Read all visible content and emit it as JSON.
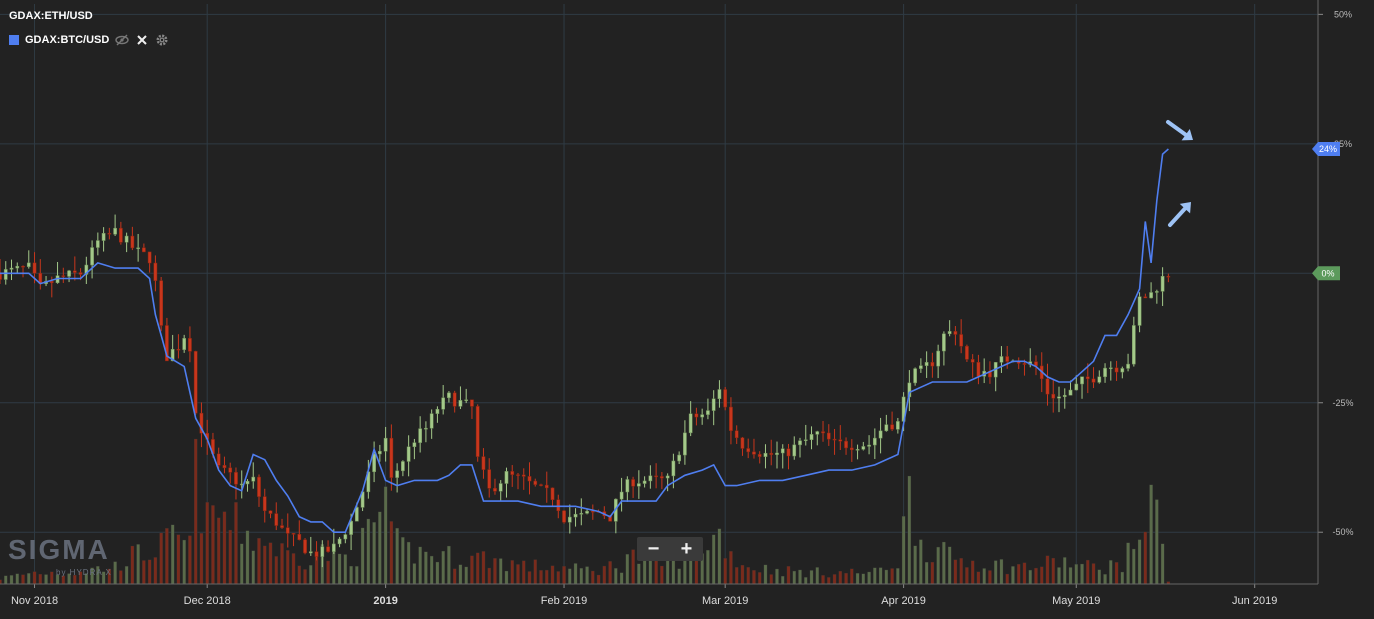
{
  "header": {
    "main_symbol": "GDAX:ETH/USD",
    "compare_symbol": "GDAX:BTC/USD"
  },
  "zoom": {
    "minus_label": "−",
    "plus_label": "+"
  },
  "logo": {
    "text": "SIGMA",
    "sub": "by HYDRA X"
  },
  "colors": {
    "background": "#222222",
    "grid": "#2f3b44",
    "up_candle": "#a4c98a",
    "down_candle": "#c8361c",
    "up_volume": "#5a6b4a",
    "down_volume": "#7a2b1c",
    "compare_line": "#4f7ef0",
    "arrow": "#9ec3f5"
  },
  "icons": {
    "hide": "eye-slash-icon",
    "remove": "close-icon",
    "settings": "gear-icon",
    "arrow_down": "arrow-down-right-icon",
    "arrow_up": "arrow-up-right-icon"
  },
  "chart_data": {
    "type": "candlestick",
    "title": "",
    "ylabel": "",
    "y_axis": {
      "unit": "percent change",
      "ticks": [
        50,
        25,
        -25,
        -50
      ],
      "tick_labels": [
        "50%",
        "25%",
        "-25%",
        "-50%"
      ],
      "ylim": [
        -60,
        52
      ]
    },
    "x_axis": {
      "labels": [
        {
          "text": "Nov 2018",
          "day": 0,
          "bold": false
        },
        {
          "text": "Dec 2018",
          "day": 30,
          "bold": false
        },
        {
          "text": "2019",
          "day": 61,
          "bold": true
        },
        {
          "text": "Feb 2019",
          "day": 92,
          "bold": false
        },
        {
          "text": "Mar 2019",
          "day": 120,
          "bold": false
        },
        {
          "text": "Apr 2019",
          "day": 151,
          "bold": false
        },
        {
          "text": "May 2019",
          "day": 181,
          "bold": false
        },
        {
          "text": "Jun 2019",
          "day": 212,
          "bold": false
        }
      ],
      "xlim_days": [
        -6,
        223
      ]
    },
    "last_value_badges": [
      {
        "value": 24,
        "text": "24%",
        "color": "#4f7ef0"
      },
      {
        "value": 0,
        "text": "0%",
        "color": "#5c9a5c"
      }
    ],
    "series": [
      {
        "name": "GDAX:ETH/USD",
        "kind": "candles",
        "close_keypoints": [
          [
            -6,
            0
          ],
          [
            -1,
            1
          ],
          [
            1,
            -3
          ],
          [
            4,
            -1
          ],
          [
            8,
            0
          ],
          [
            11,
            6
          ],
          [
            14,
            8
          ],
          [
            18,
            4
          ],
          [
            20,
            3
          ],
          [
            21,
            -2
          ],
          [
            22,
            -11
          ],
          [
            23,
            -16
          ],
          [
            25,
            -14
          ],
          [
            26,
            -12
          ],
          [
            27,
            -14
          ],
          [
            28,
            -27
          ],
          [
            30,
            -33
          ],
          [
            32,
            -38
          ],
          [
            34,
            -39
          ],
          [
            36,
            -41
          ],
          [
            38,
            -40
          ],
          [
            40,
            -46
          ],
          [
            42,
            -48
          ],
          [
            44,
            -51
          ],
          [
            46,
            -52
          ],
          [
            48,
            -54
          ],
          [
            50,
            -54
          ],
          [
            52,
            -53
          ],
          [
            55,
            -48
          ],
          [
            57,
            -42
          ],
          [
            59,
            -36
          ],
          [
            61,
            -32
          ],
          [
            62,
            -40
          ],
          [
            64,
            -36
          ],
          [
            66,
            -32
          ],
          [
            68,
            -30
          ],
          [
            70,
            -26
          ],
          [
            72,
            -24
          ],
          [
            74,
            -25
          ],
          [
            76,
            -26
          ],
          [
            77,
            -36
          ],
          [
            79,
            -42
          ],
          [
            82,
            -39
          ],
          [
            85,
            -40
          ],
          [
            88,
            -42
          ],
          [
            90,
            -43
          ],
          [
            92,
            -47
          ],
          [
            95,
            -47
          ],
          [
            98,
            -46
          ],
          [
            100,
            -47
          ],
          [
            102,
            -42
          ],
          [
            104,
            -40
          ],
          [
            107,
            -40
          ],
          [
            110,
            -40
          ],
          [
            112,
            -34
          ],
          [
            114,
            -28
          ],
          [
            117,
            -27
          ],
          [
            119,
            -22
          ],
          [
            121,
            -30
          ],
          [
            123,
            -33
          ],
          [
            125,
            -34
          ],
          [
            127,
            -35
          ],
          [
            130,
            -35
          ],
          [
            133,
            -33
          ],
          [
            136,
            -31
          ],
          [
            139,
            -33
          ],
          [
            142,
            -33
          ],
          [
            145,
            -33
          ],
          [
            148,
            -29
          ],
          [
            150,
            -29
          ],
          [
            152,
            -20
          ],
          [
            154,
            -19
          ],
          [
            156,
            -17
          ],
          [
            158,
            -12
          ],
          [
            160,
            -11
          ],
          [
            162,
            -17
          ],
          [
            164,
            -19
          ],
          [
            166,
            -19
          ],
          [
            168,
            -17
          ],
          [
            170,
            -16
          ],
          [
            172,
            -17
          ],
          [
            174,
            -18
          ],
          [
            176,
            -23
          ],
          [
            178,
            -24
          ],
          [
            180,
            -23
          ],
          [
            182,
            -21
          ],
          [
            184,
            -20
          ],
          [
            186,
            -18
          ],
          [
            188,
            -18
          ],
          [
            190,
            -17
          ],
          [
            192,
            -5
          ],
          [
            194,
            -4
          ],
          [
            196,
            -1
          ],
          [
            197,
            0
          ]
        ]
      },
      {
        "name": "GDAX:BTC/USD",
        "kind": "line",
        "points": [
          [
            -6,
            0
          ],
          [
            -1,
            0
          ],
          [
            1,
            -2
          ],
          [
            4,
            -1
          ],
          [
            8,
            -1
          ],
          [
            11,
            2
          ],
          [
            14,
            1
          ],
          [
            18,
            1
          ],
          [
            20,
            -1
          ],
          [
            21,
            -8
          ],
          [
            22,
            -12
          ],
          [
            23,
            -16
          ],
          [
            26,
            -18
          ],
          [
            28,
            -28
          ],
          [
            30,
            -32
          ],
          [
            32,
            -38
          ],
          [
            34,
            -41
          ],
          [
            36,
            -42
          ],
          [
            38,
            -35
          ],
          [
            40,
            -36
          ],
          [
            42,
            -40
          ],
          [
            44,
            -43
          ],
          [
            46,
            -47
          ],
          [
            48,
            -48
          ],
          [
            50,
            -48
          ],
          [
            52,
            -50
          ],
          [
            54,
            -50
          ],
          [
            57,
            -42
          ],
          [
            59,
            -34
          ],
          [
            61,
            -40
          ],
          [
            63,
            -41
          ],
          [
            66,
            -40
          ],
          [
            70,
            -40
          ],
          [
            72,
            -39
          ],
          [
            74,
            -37
          ],
          [
            76,
            -37
          ],
          [
            78,
            -44
          ],
          [
            80,
            -44
          ],
          [
            84,
            -44
          ],
          [
            88,
            -45
          ],
          [
            90,
            -45
          ],
          [
            94,
            -45
          ],
          [
            98,
            -46
          ],
          [
            100,
            -47
          ],
          [
            102,
            -44
          ],
          [
            105,
            -44
          ],
          [
            108,
            -44
          ],
          [
            110,
            -41
          ],
          [
            113,
            -39
          ],
          [
            116,
            -38
          ],
          [
            118,
            -37
          ],
          [
            120,
            -41
          ],
          [
            122,
            -41
          ],
          [
            126,
            -40
          ],
          [
            130,
            -40
          ],
          [
            134,
            -39
          ],
          [
            138,
            -38
          ],
          [
            142,
            -38
          ],
          [
            146,
            -37
          ],
          [
            150,
            -35
          ],
          [
            152,
            -23
          ],
          [
            154,
            -22
          ],
          [
            156,
            -21
          ],
          [
            158,
            -21
          ],
          [
            160,
            -21
          ],
          [
            162,
            -21
          ],
          [
            164,
            -20
          ],
          [
            166,
            -19
          ],
          [
            168,
            -18
          ],
          [
            170,
            -17
          ],
          [
            172,
            -17
          ],
          [
            174,
            -18
          ],
          [
            176,
            -20
          ],
          [
            178,
            -21
          ],
          [
            180,
            -21
          ],
          [
            182,
            -19
          ],
          [
            184,
            -17
          ],
          [
            186,
            -12
          ],
          [
            188,
            -12
          ],
          [
            190,
            -8
          ],
          [
            192,
            -3
          ],
          [
            193,
            10
          ],
          [
            194,
            2
          ],
          [
            195,
            14
          ],
          [
            196,
            23
          ],
          [
            197,
            24
          ]
        ]
      },
      {
        "name": "Volume",
        "kind": "volume",
        "max_value": 100,
        "keypoints": [
          [
            -6,
            4
          ],
          [
            0,
            8
          ],
          [
            5,
            8
          ],
          [
            10,
            10
          ],
          [
            14,
            12
          ],
          [
            16,
            18
          ],
          [
            20,
            22
          ],
          [
            24,
            30
          ],
          [
            27,
            28
          ],
          [
            28,
            80
          ],
          [
            30,
            40
          ],
          [
            32,
            50
          ],
          [
            34,
            40
          ],
          [
            36,
            38
          ],
          [
            38,
            32
          ],
          [
            40,
            30
          ],
          [
            44,
            20
          ],
          [
            47,
            18
          ],
          [
            50,
            22
          ],
          [
            54,
            18
          ],
          [
            56,
            22
          ],
          [
            58,
            34
          ],
          [
            59,
            40
          ],
          [
            61,
            60
          ],
          [
            62,
            30
          ],
          [
            64,
            24
          ],
          [
            66,
            22
          ],
          [
            70,
            20
          ],
          [
            74,
            18
          ],
          [
            78,
            18
          ],
          [
            82,
            15
          ],
          [
            86,
            12
          ],
          [
            90,
            12
          ],
          [
            94,
            10
          ],
          [
            98,
            10
          ],
          [
            102,
            14
          ],
          [
            103,
            22
          ],
          [
            106,
            14
          ],
          [
            110,
            15
          ],
          [
            114,
            22
          ],
          [
            117,
            30
          ],
          [
            119,
            34
          ],
          [
            121,
            20
          ],
          [
            124,
            12
          ],
          [
            128,
            10
          ],
          [
            134,
            8
          ],
          [
            140,
            8
          ],
          [
            146,
            8
          ],
          [
            150,
            16
          ],
          [
            152,
            60
          ],
          [
            154,
            30
          ],
          [
            156,
            24
          ],
          [
            158,
            20
          ],
          [
            162,
            16
          ],
          [
            166,
            14
          ],
          [
            170,
            12
          ],
          [
            174,
            12
          ],
          [
            178,
            16
          ],
          [
            182,
            12
          ],
          [
            186,
            12
          ],
          [
            189,
            14
          ],
          [
            191,
            26
          ],
          [
            193,
            48
          ],
          [
            195,
            50
          ],
          [
            196,
            46
          ],
          [
            197,
            2
          ]
        ]
      }
    ]
  }
}
